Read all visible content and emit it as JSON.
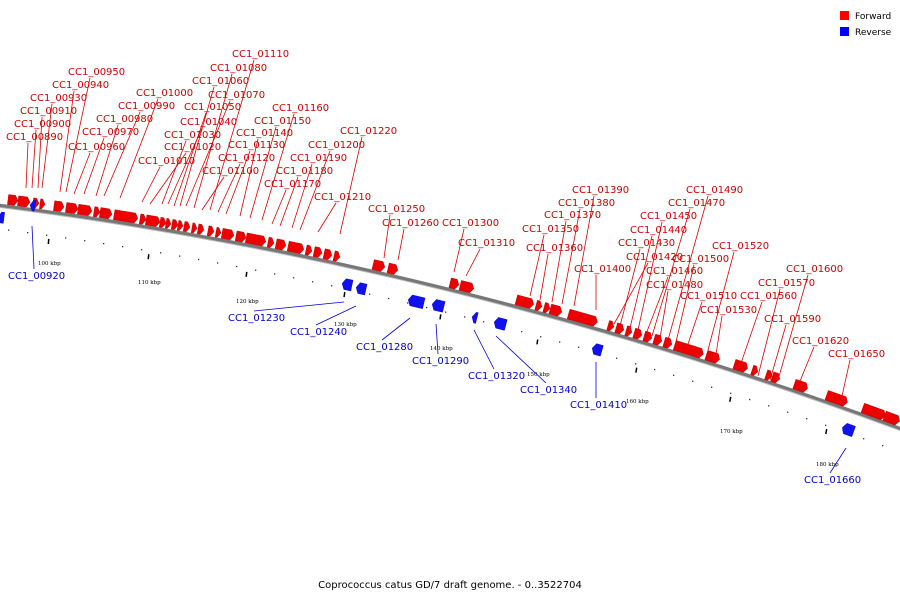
{
  "caption": "Coprococcus catus GD/7 draft genome. - 0..3522704",
  "legend": [
    {
      "label": "Forward",
      "color": "#ff0000"
    },
    {
      "label": "Reverse",
      "color": "#0000ff"
    }
  ],
  "colors": {
    "forward_label": "#cc0000",
    "reverse_label": "#0000cc",
    "backbone": "#888888"
  },
  "ticks": [
    "100 kbp",
    "110 kbp",
    "120 kbp",
    "130 kbp",
    "140 kbp",
    "150 kbp",
    "160 kbp",
    "170 kbp",
    "180 kbp"
  ],
  "forward_genes": [
    "CC1_00890",
    "CC1_00900",
    "CC1_00910",
    "CC1_00930",
    "CC1_00940",
    "CC1_00950",
    "CC1_00960",
    "CC1_00970",
    "CC1_00980",
    "CC1_00990",
    "CC1_01000",
    "CC1_01010",
    "CC1_01020",
    "CC1_01030",
    "CC1_01040",
    "CC1_01050",
    "CC1_01060",
    "CC1_01070",
    "CC1_01080",
    "CC1_01100",
    "CC1_01110",
    "CC1_01120",
    "CC1_01130",
    "CC1_01140",
    "CC1_01150",
    "CC1_01160",
    "CC1_01170",
    "CC1_01180",
    "CC1_01190",
    "CC1_01200",
    "CC1_01210",
    "CC1_01220",
    "CC1_01250",
    "CC1_01260",
    "CC1_01300",
    "CC1_01310",
    "CC1_01350",
    "CC1_01360",
    "CC1_01370",
    "CC1_01380",
    "CC1_01390",
    "CC1_01400",
    "CC1_01420",
    "CC1_01430",
    "CC1_01440",
    "CC1_01450",
    "CC1_01460",
    "CC1_01470",
    "CC1_01480",
    "CC1_01490",
    "CC1_01500",
    "CC1_01510",
    "CC1_01520",
    "CC1_01530",
    "CC1_01560",
    "CC1_01570",
    "CC1_01590",
    "CC1_01600",
    "CC1_01620",
    "CC1_01650"
  ],
  "reverse_genes": [
    "CC1_00920",
    "CC1_01230",
    "CC1_01240",
    "CC1_01280",
    "CC1_01290",
    "CC1_01320",
    "CC1_01340",
    "CC1_01410",
    "CC1_01660"
  ]
}
